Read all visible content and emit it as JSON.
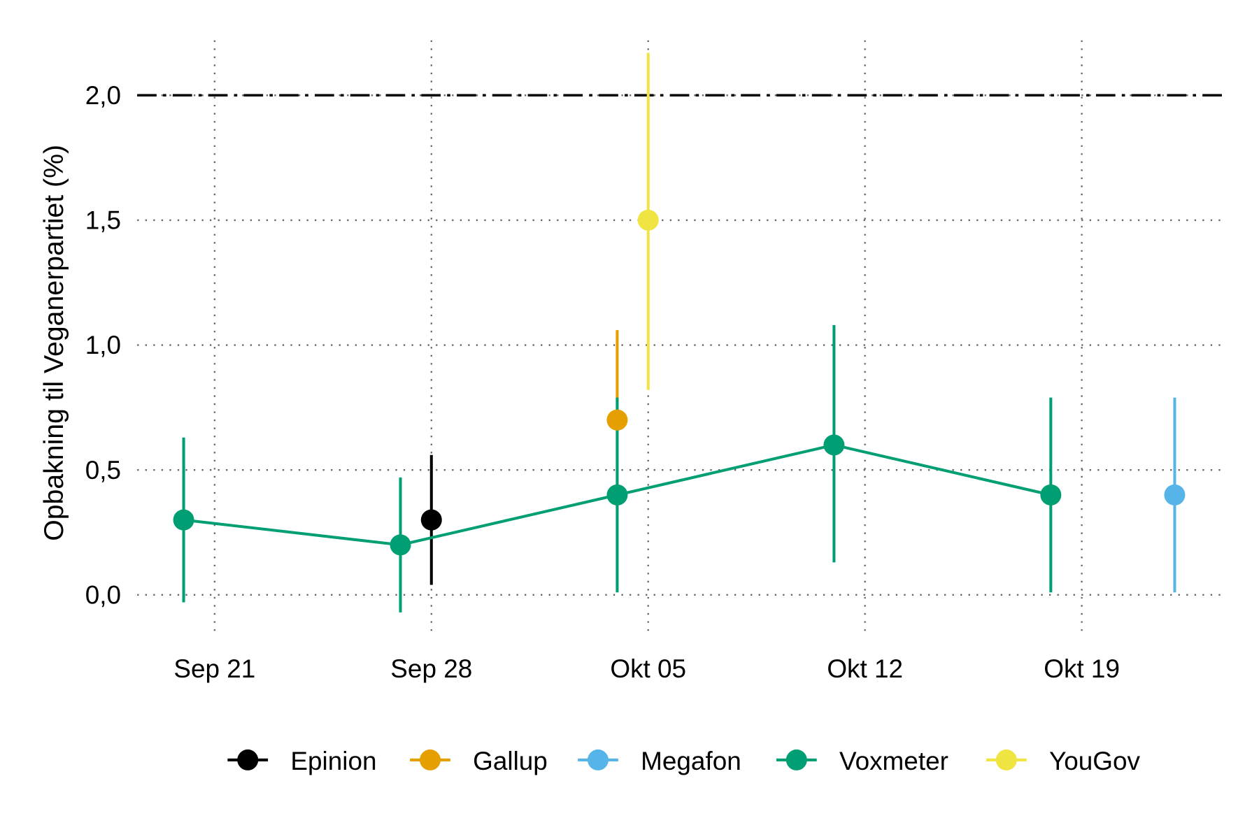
{
  "chart_data": {
    "type": "scatter",
    "title": "",
    "xlabel": "",
    "ylabel": "Opbakning til Veganerpartiet (%)",
    "ylim": [
      -0.17,
      2.22
    ],
    "xlim_days_from_sep21": [
      -2.5,
      32.55
    ],
    "grid": true,
    "legend_position": "bottom",
    "x_ticks": [
      {
        "label": "Sep 21",
        "day": 0
      },
      {
        "label": "Sep 28",
        "day": 7
      },
      {
        "label": "Okt 05",
        "day": 14
      },
      {
        "label": "Okt 12",
        "day": 21
      },
      {
        "label": "Okt 19",
        "day": 28
      }
    ],
    "y_ticks": [
      {
        "label": "0,0",
        "value": 0
      },
      {
        "label": "0,5",
        "value": 0.5
      },
      {
        "label": "1,0",
        "value": 1.0
      },
      {
        "label": "1,5",
        "value": 1.5
      },
      {
        "label": "2,0",
        "value": 2.0
      }
    ],
    "threshold": {
      "value": 2.0,
      "style": "dashed",
      "color": "#000000"
    },
    "series": [
      {
        "name": "Epinion",
        "color": "#000000",
        "line": false,
        "points": [
          {
            "date": "Sep 28",
            "day": 7,
            "value": 0.3,
            "low": 0.04,
            "high": 0.56
          }
        ]
      },
      {
        "name": "Gallup",
        "color": "#E69F00",
        "line": false,
        "points": [
          {
            "date": "Okt 04",
            "day": 13,
            "value": 0.7,
            "low": 0.34,
            "high": 1.06
          }
        ]
      },
      {
        "name": "Megafon",
        "color": "#56B4E9",
        "line": false,
        "points": [
          {
            "date": "Okt 22",
            "day": 31,
            "value": 0.4,
            "low": 0.01,
            "high": 0.79
          }
        ]
      },
      {
        "name": "Voxmeter",
        "color": "#009E73",
        "line": true,
        "points": [
          {
            "date": "Sep 20",
            "day": -1,
            "value": 0.3,
            "low": -0.03,
            "high": 0.63
          },
          {
            "date": "Sep 27",
            "day": 6,
            "value": 0.2,
            "low": -0.07,
            "high": 0.47
          },
          {
            "date": "Okt 04",
            "day": 13,
            "value": 0.4,
            "low": 0.01,
            "high": 0.79
          },
          {
            "date": "Okt 11",
            "day": 20,
            "value": 0.6,
            "low": 0.13,
            "high": 1.08
          },
          {
            "date": "Okt 18",
            "day": 27,
            "value": 0.4,
            "low": 0.01,
            "high": 0.79
          }
        ]
      },
      {
        "name": "YouGov",
        "color": "#F0E442",
        "line": false,
        "points": [
          {
            "date": "Okt 05",
            "day": 14,
            "value": 1.5,
            "low": 0.82,
            "high": 2.17
          }
        ]
      }
    ]
  }
}
